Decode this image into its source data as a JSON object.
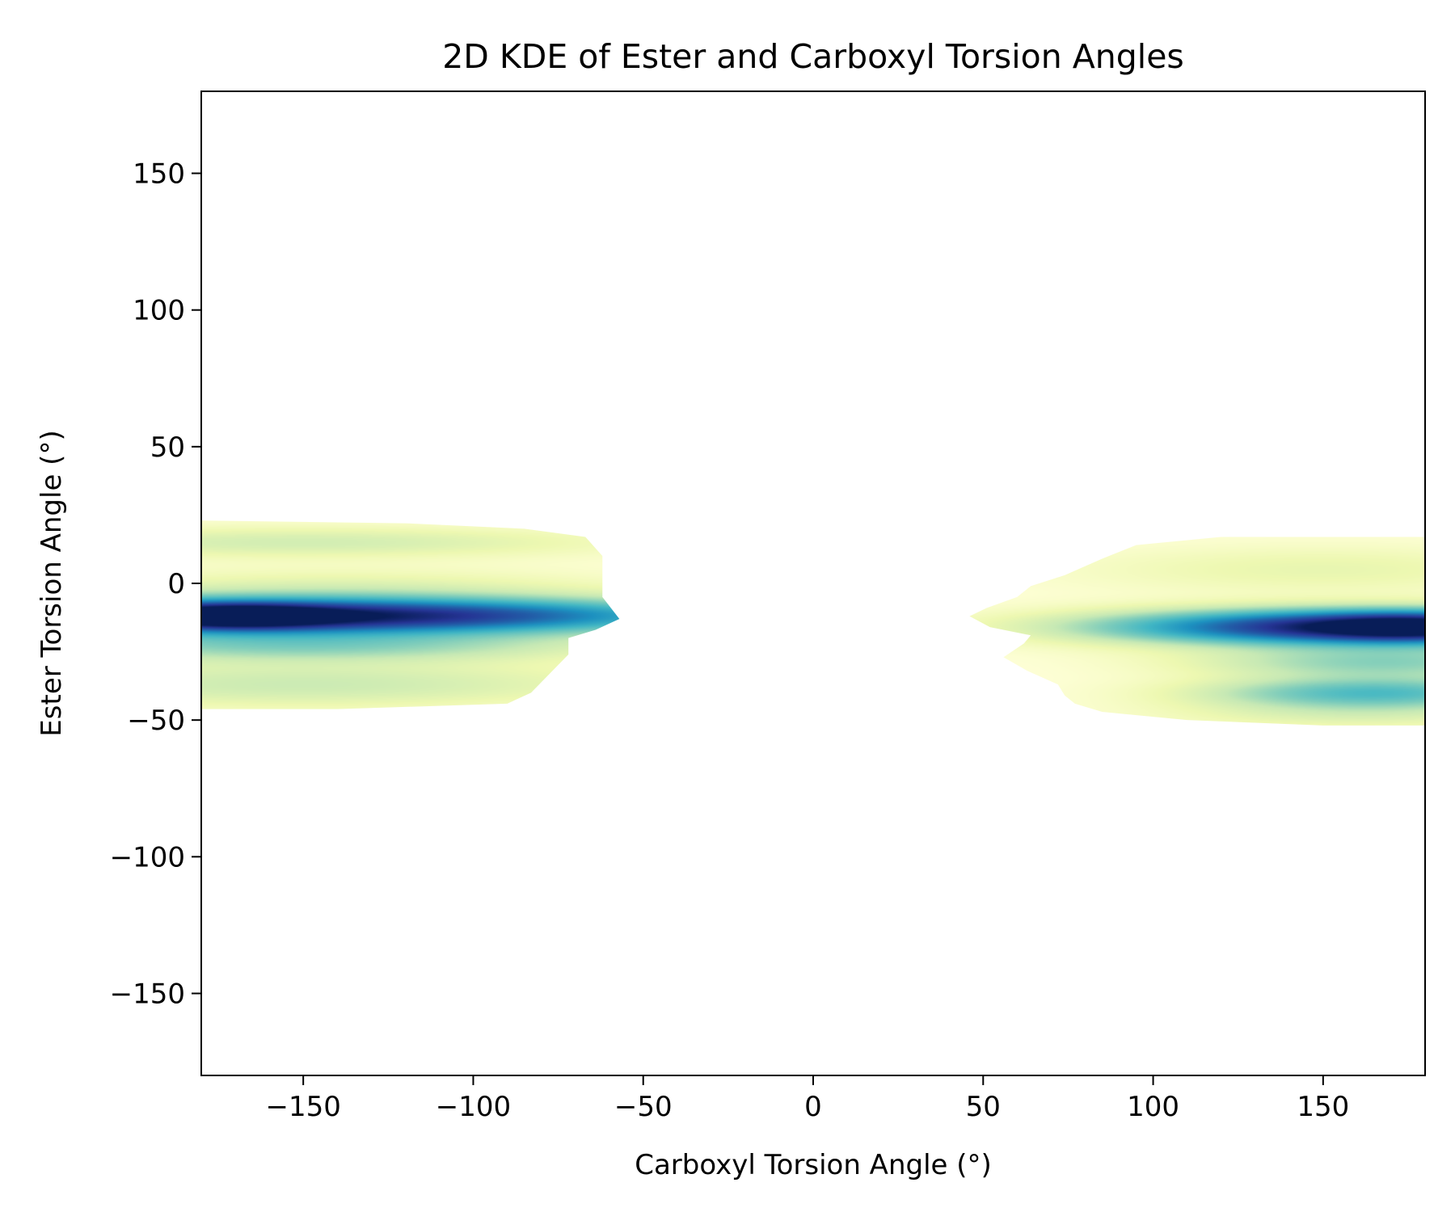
{
  "chart_data": {
    "type": "heatmap",
    "subtype": "2d-kde-filled-contour",
    "title": "2D KDE of Ester and Carboxyl Torsion Angles",
    "xlabel": "Carboxyl Torsion Angle (°)",
    "ylabel": "Ester Torsion Angle (°)",
    "xlim": [
      -180,
      180
    ],
    "ylim": [
      -180,
      180
    ],
    "xticks": [
      -150,
      -100,
      -50,
      0,
      50,
      100,
      150
    ],
    "yticks": [
      -150,
      -100,
      -50,
      0,
      50,
      100,
      150
    ],
    "xtick_labels": [
      "−150",
      "−100",
      "−50",
      "0",
      "50",
      "100",
      "150"
    ],
    "ytick_labels": [
      "−150",
      "−100",
      "−50",
      "0",
      "50",
      "100",
      "150"
    ],
    "colormap": "YlGnBu",
    "colors": [
      "#ffffd9",
      "#edf8b1",
      "#c7e9b4",
      "#7fcdbb",
      "#41b6c4",
      "#1d91c0",
      "#225ea8",
      "#253494",
      "#081d58"
    ],
    "grid": false,
    "legend": "none",
    "regions": [
      {
        "name": "left-cluster",
        "x_range": [
          -180,
          -60
        ],
        "y_range": [
          -46,
          23
        ],
        "peak": {
          "x": -165,
          "y": -12
        },
        "bands_y": [
          15,
          -12,
          -23,
          -37
        ],
        "boundary": [
          [
            -180,
            23
          ],
          [
            -120,
            22
          ],
          [
            -85,
            20
          ],
          [
            -67,
            17
          ],
          [
            -62,
            10
          ],
          [
            -62,
            -5
          ],
          [
            -57,
            -13
          ],
          [
            -64,
            -17
          ],
          [
            -72,
            -20
          ],
          [
            -72,
            -26
          ],
          [
            -83,
            -40
          ],
          [
            -90,
            -44
          ],
          [
            -140,
            -46
          ],
          [
            -180,
            -46
          ]
        ],
        "blobs": [
          {
            "x": -150,
            "y": -12,
            "sx": 80,
            "sy": 4.5,
            "w": 1.0
          },
          {
            "x": -170,
            "y": -12,
            "sx": 18,
            "sy": 3,
            "w": 0.5
          },
          {
            "x": -150,
            "y": -23,
            "sx": 60,
            "sy": 4,
            "w": 0.28
          },
          {
            "x": -150,
            "y": -37,
            "sx": 70,
            "sy": 6,
            "w": 0.18
          },
          {
            "x": -150,
            "y": 15,
            "sx": 65,
            "sy": 4,
            "w": 0.16
          },
          {
            "x": -140,
            "y": -2,
            "sx": 60,
            "sy": 5,
            "w": 0.12
          }
        ]
      },
      {
        "name": "right-cluster",
        "x_range": [
          46,
          180
        ],
        "y_range": [
          -52,
          17
        ],
        "peak": {
          "x": 163,
          "y": -16
        },
        "bands_y": [
          -16,
          -29,
          -40,
          -48
        ],
        "boundary": [
          [
            180,
            17
          ],
          [
            120,
            17
          ],
          [
            95,
            14
          ],
          [
            85,
            9
          ],
          [
            74,
            3
          ],
          [
            64,
            -1
          ],
          [
            60,
            -5
          ],
          [
            51,
            -9
          ],
          [
            46,
            -12
          ],
          [
            52,
            -16
          ],
          [
            64,
            -19
          ],
          [
            62,
            -22
          ],
          [
            56,
            -27
          ],
          [
            63,
            -32
          ],
          [
            72,
            -37
          ],
          [
            74,
            -41
          ],
          [
            77,
            -44
          ],
          [
            85,
            -47
          ],
          [
            110,
            -50
          ],
          [
            150,
            -52
          ],
          [
            180,
            -52
          ]
        ],
        "blobs": [
          {
            "x": 165,
            "y": -16,
            "sx": 52,
            "sy": 4.5,
            "w": 1.0
          },
          {
            "x": 175,
            "y": -16,
            "sx": 18,
            "sy": 3.5,
            "w": 0.3
          },
          {
            "x": 168,
            "y": -29,
            "sx": 38,
            "sy": 4,
            "w": 0.28
          },
          {
            "x": 165,
            "y": -40,
            "sx": 35,
            "sy": 4,
            "w": 0.4
          },
          {
            "x": 160,
            "y": -48,
            "sx": 40,
            "sy": 4,
            "w": 0.12
          },
          {
            "x": 150,
            "y": 5,
            "sx": 50,
            "sy": 6,
            "w": 0.1
          }
        ]
      }
    ]
  }
}
